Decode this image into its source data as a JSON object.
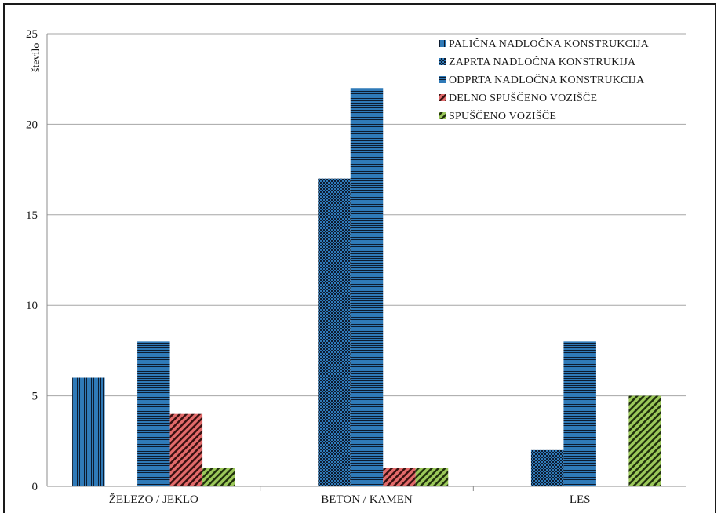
{
  "chart_data": {
    "type": "bar",
    "title": "",
    "xlabel": "",
    "ylabel": "število",
    "ylim": [
      0,
      25
    ],
    "yticks": [
      0,
      5,
      10,
      15,
      20,
      25
    ],
    "grid": true,
    "legend_position": "top-right",
    "categories": [
      "ŽELEZO / JEKLO",
      "BETON / KAMEN",
      "LES"
    ],
    "series": [
      {
        "name": "PALIČNA NADLOČNA KONSTRUKCIJA",
        "values": [
          6,
          0,
          0
        ],
        "color": "#2e75b6",
        "pattern": "vertical-stripes"
      },
      {
        "name": "ZAPRTA NADLOČNA KONSTRUKIJA",
        "values": [
          0,
          17,
          2
        ],
        "color": "#2e75b6",
        "pattern": "checker"
      },
      {
        "name": "ODPRTA NADLOČNA KONSTRUKCIJA",
        "values": [
          8,
          22,
          8
        ],
        "color": "#2e75b6",
        "pattern": "horizontal-stripes"
      },
      {
        "name": "DELNO SPUŠČENO VOZIŠČE",
        "values": [
          4,
          1,
          0
        ],
        "color": "#e06060",
        "pattern": "diagonal-stripes"
      },
      {
        "name": "SPUŠČENO VOZIŠČE",
        "values": [
          1,
          1,
          5
        ],
        "color": "#92c050",
        "pattern": "diagonal-stripes"
      }
    ]
  }
}
